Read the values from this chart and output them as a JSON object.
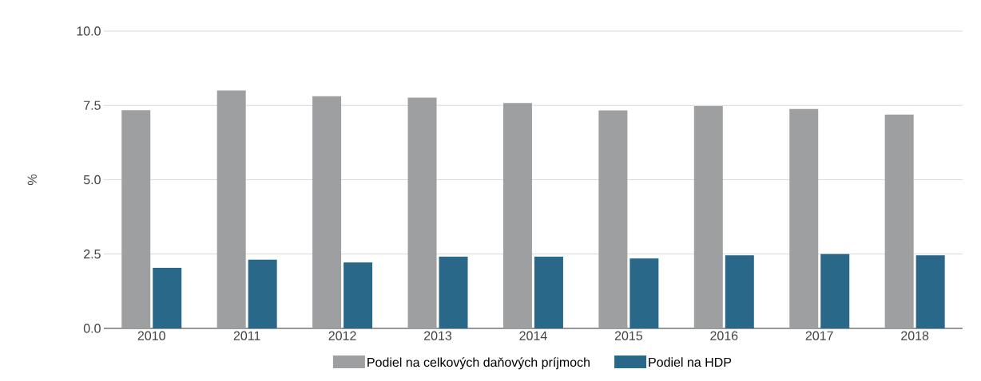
{
  "chart_data": {
    "type": "bar",
    "ylabel": "%",
    "categories": [
      "2010",
      "2011",
      "2012",
      "2013",
      "2014",
      "2015",
      "2016",
      "2017",
      "2018"
    ],
    "series": [
      {
        "name": "Podiel na celkových daňových príjmoch",
        "color": "#9e9fa1",
        "values": [
          7.34,
          8.0,
          7.81,
          7.76,
          7.58,
          7.33,
          7.48,
          7.38,
          7.19
        ]
      },
      {
        "name": "Podiel na HDP",
        "color": "#2a6889",
        "values": [
          2.04,
          2.31,
          2.22,
          2.41,
          2.41,
          2.35,
          2.46,
          2.5,
          2.46
        ]
      }
    ],
    "ylim": [
      0,
      10
    ],
    "yticks": [
      {
        "value": 0,
        "label": "0.0"
      },
      {
        "value": 2.5,
        "label": "2.5"
      },
      {
        "value": 5,
        "label": "5.0"
      },
      {
        "value": 7.5,
        "label": "7.5"
      },
      {
        "value": 10,
        "label": "10.0"
      }
    ],
    "grid": "y",
    "legend": "bottom"
  }
}
